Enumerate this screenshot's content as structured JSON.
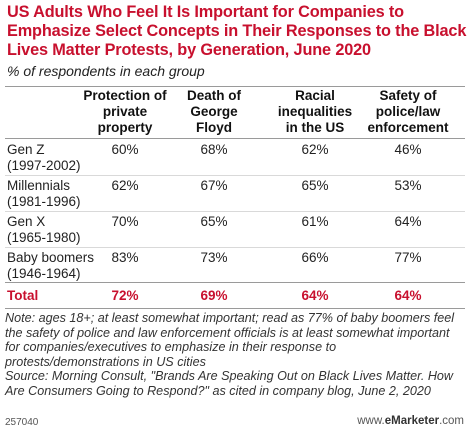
{
  "chart_data": {
    "type": "table",
    "title": "US Adults Who Feel It Is Important for Companies to Emphasize Select Concepts in Their Responses to the Black Lives Matter Protests, by Generation, June 2020",
    "subtitle": "% of respondents in each group",
    "columns": [
      "Protection of private property",
      "Death of George Floyd",
      "Racial inequalities in the US",
      "Safety of police/law enforcement"
    ],
    "rows": [
      {
        "label": "Gen Z",
        "sub": "(1997-2002)",
        "values": [
          "60%",
          "68%",
          "62%",
          "46%"
        ]
      },
      {
        "label": "Millennials",
        "sub": "(1981-1996)",
        "values": [
          "62%",
          "67%",
          "65%",
          "53%"
        ]
      },
      {
        "label": "Gen X",
        "sub": "(1965-1980)",
        "values": [
          "70%",
          "65%",
          "61%",
          "64%"
        ]
      },
      {
        "label": "Baby boomers",
        "sub": "(1946-1964)",
        "values": [
          "83%",
          "73%",
          "66%",
          "77%"
        ]
      }
    ],
    "total": {
      "label": "Total",
      "values": [
        "72%",
        "69%",
        "64%",
        "64%"
      ]
    }
  },
  "note": "Note: ages 18+; at least somewhat important; read as 77% of baby boomers feel the safety of police and law enforcement officials is at least somewhat important for companies/executives to emphasize in their response to protests/demonstrations in US cities",
  "source": "Source: Morning Consult, \"Brands Are Speaking Out on Black Lives Matter. How Are Consumers Going to Respond?\" as cited in company blog, June 2, 2020",
  "footer": {
    "id": "257040",
    "site_prefix": "www.",
    "site_brand": "eMarketer",
    "site_suffix": ".com"
  },
  "colors": {
    "title": "#c8102e",
    "total": "#c8102e",
    "text": "#222222"
  }
}
